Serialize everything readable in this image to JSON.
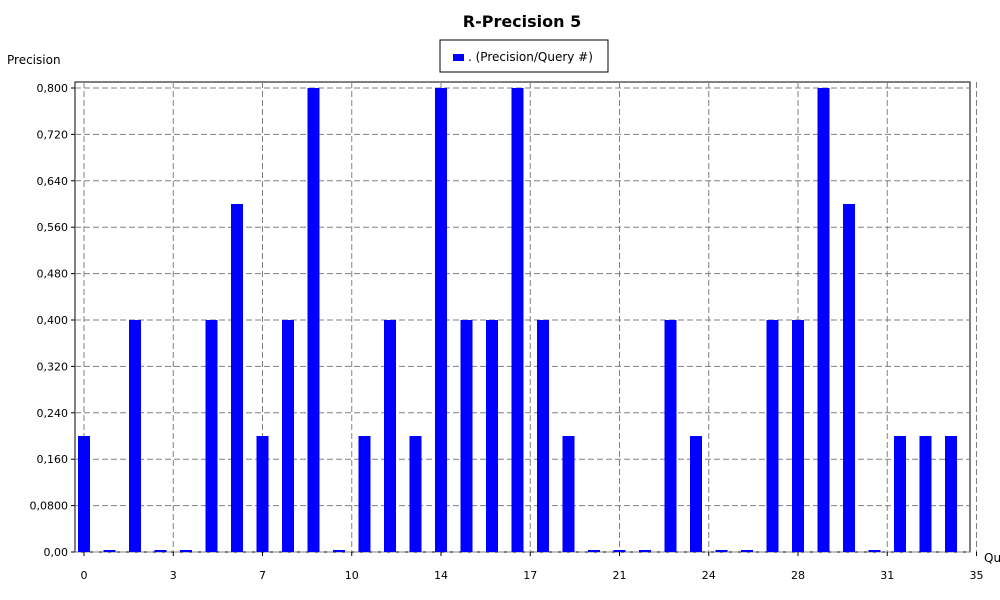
{
  "chart_data": {
    "type": "bar",
    "title": "R-Precision 5",
    "ylabel": "Precision",
    "xlabel": "Qu",
    "legend": {
      "label": ". (Precision/Query #)",
      "placement": "top-center"
    },
    "colors": {
      "bar": "#0000ff",
      "grid": "#808080"
    },
    "grid": true,
    "ylim": [
      0,
      0.8
    ],
    "xlim": [
      0,
      35
    ],
    "y_ticks": [
      "0,00",
      "0,0800",
      "0,160",
      "0,240",
      "0,320",
      "0,400",
      "0,480",
      "0,560",
      "0,640",
      "0,720",
      "0,800"
    ],
    "y_tick_values": [
      0,
      0.08,
      0.16,
      0.24,
      0.32,
      0.4,
      0.48,
      0.56,
      0.64,
      0.72,
      0.8
    ],
    "x_ticks": [
      "0",
      "3",
      "7",
      "10",
      "14",
      "17",
      "21",
      "24",
      "28",
      "31",
      "35"
    ],
    "x_tick_values": [
      0,
      3.5,
      7,
      10.5,
      14,
      17.5,
      21,
      24.5,
      28,
      31.5,
      35
    ],
    "series": [
      {
        "x": [
          0,
          1,
          2,
          3,
          4,
          5,
          6,
          7,
          8,
          9,
          10,
          11,
          12,
          13,
          14,
          15,
          16,
          17,
          18,
          19,
          20,
          21,
          22,
          23,
          24,
          25,
          26,
          27,
          28,
          29,
          30,
          31,
          32,
          33,
          34
        ],
        "values": [
          0.2,
          0.0,
          0.4,
          0.0,
          0.0,
          0.4,
          0.6,
          0.2,
          0.4,
          0.8,
          0.0,
          0.2,
          0.4,
          0.2,
          0.8,
          0.4,
          0.4,
          0.8,
          0.4,
          0.2,
          0.0,
          0.0,
          0.0,
          0.4,
          0.2,
          0.0,
          0.0,
          0.4,
          0.4,
          0.8,
          0.6,
          0.0,
          0.2,
          0.2,
          0.2
        ]
      }
    ]
  }
}
